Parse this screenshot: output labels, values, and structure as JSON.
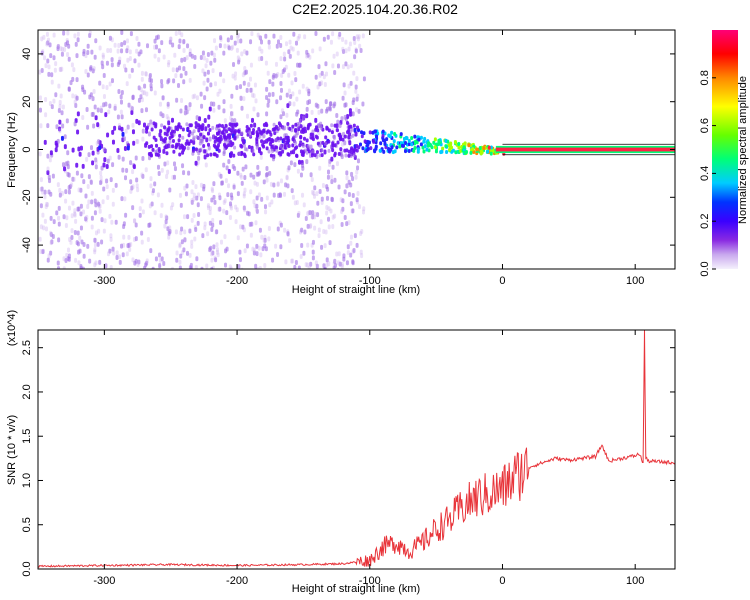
{
  "title": "C2E2.2025.104.20.36.R02",
  "chart_data": [
    {
      "type": "heatmap",
      "xlabel": "Height of straight line (km)",
      "ylabel": "Frequency (Hz)",
      "xlim": [
        -350,
        130
      ],
      "ylim": [
        -50,
        50
      ],
      "xticks": [
        -300,
        -200,
        -100,
        0,
        100
      ],
      "yticks": [
        -40,
        -20,
        0,
        20,
        40
      ],
      "colorbar": {
        "label": "Normalized spectral amplitude",
        "range": [
          0.0,
          1.0
        ],
        "ticks": [
          0.0,
          0.2,
          0.4,
          0.6,
          0.8
        ],
        "colors": [
          "#f5f0fc",
          "#8a2be2",
          "#5a00ff",
          "#0000ff",
          "#00ccff",
          "#00ff55",
          "#b0ff00",
          "#ffff00",
          "#ff7f00",
          "#ff0000",
          "#ff007f"
        ]
      },
      "features": [
        {
          "name": "noise band",
          "x_range": [
            -350,
            -110
          ],
          "center_hz": 5,
          "spread_hz": 10,
          "amplitude": 0.25
        },
        {
          "name": "converging band",
          "x_range": [
            -110,
            0
          ],
          "center_hz_start": 5,
          "center_hz_end": 0,
          "amplitude": 0.5
        },
        {
          "name": "carrier line",
          "x_range": [
            0,
            130
          ],
          "center_hz": 0,
          "amplitude": 0.95
        }
      ],
      "grid": false
    },
    {
      "type": "line",
      "xlabel": "Height of straight line (km)",
      "ylabel": "SNR (10 * v/v)",
      "scale_note": "(x10^4)",
      "xlim": [
        -350,
        130
      ],
      "ylim": [
        0,
        2.7
      ],
      "xticks": [
        -300,
        -200,
        -100,
        0,
        100
      ],
      "yticks": [
        0.0,
        0.5,
        1.0,
        1.5,
        2.0,
        2.5
      ],
      "series": [
        {
          "color": "#e8343a",
          "x": [
            -350,
            -300,
            -250,
            -200,
            -150,
            -120,
            -100,
            -90,
            -80,
            -70,
            -60,
            -50,
            -40,
            -30,
            -20,
            -10,
            0,
            10,
            20,
            30,
            40,
            50,
            60,
            70,
            75,
            80,
            90,
            100,
            103,
            106,
            107,
            108,
            110,
            120,
            130
          ],
          "y": [
            0.03,
            0.04,
            0.05,
            0.04,
            0.05,
            0.06,
            0.1,
            0.25,
            0.3,
            0.2,
            0.3,
            0.45,
            0.55,
            0.7,
            0.8,
            0.85,
            0.9,
            1.05,
            1.15,
            1.2,
            1.25,
            1.23,
            1.25,
            1.27,
            1.4,
            1.22,
            1.25,
            1.28,
            1.3,
            1.2,
            2.7,
            1.25,
            1.22,
            1.21,
            1.2
          ]
        }
      ],
      "grid": false
    }
  ]
}
